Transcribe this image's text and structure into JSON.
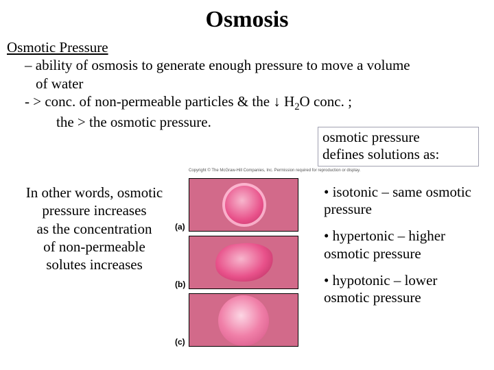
{
  "title": "Osmosis",
  "subheading": "Osmotic Pressure",
  "line1a": "– ability of osmosis to generate enough pressure to move a volume",
  "line1b": "of water",
  "line2_pre": "- > conc. of non-permeable particles & the ↓ H",
  "line2_sub": "2",
  "line2_post": "O conc. ;",
  "line3": "the > the osmotic pressure.",
  "defines1": "osmotic pressure",
  "defines2": "defines solutions as:",
  "leftcol": {
    "l1": "In other words, osmotic",
    "l2": "pressure increases",
    "l3": "as the concentration",
    "l4": "of non-permeable",
    "l5": "solutes increases"
  },
  "labels": {
    "a": "(a)",
    "b": "(b)",
    "c": "(c)"
  },
  "copyright": "Copyright © The McGraw-Hill Companies, Inc. Permission required for reproduction or display.",
  "defs": {
    "iso_t": "• isotonic",
    "iso_d": " – same osmotic pressure",
    "hyper_t": "• hypertonic",
    "hyper_d": " – higher osmotic pressure",
    "hypo_t": "• hypotonic",
    "hypo_d": " – lower osmotic pressure"
  },
  "colors": {
    "cell_bg": "#d26a8a",
    "text": "#000000",
    "page_bg": "#ffffff"
  }
}
